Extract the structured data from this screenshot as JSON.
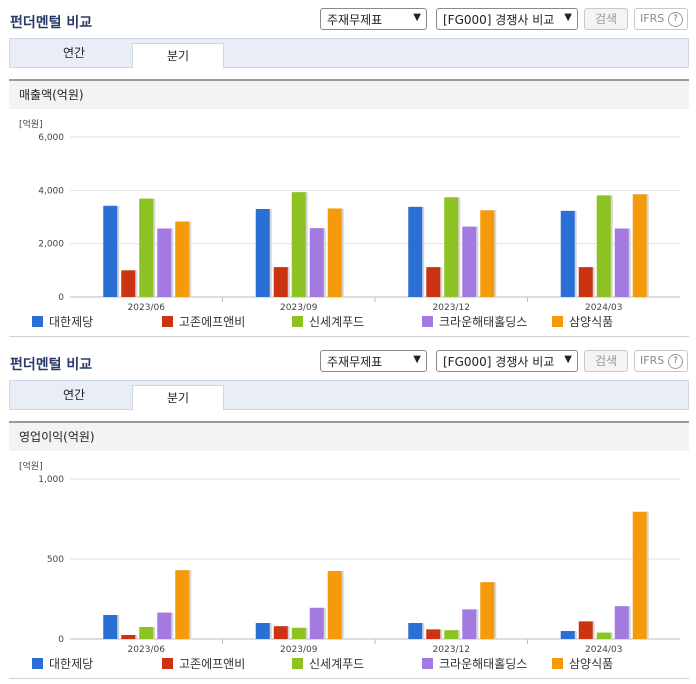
{
  "colors": [
    "#2a6fd6",
    "#cc3312",
    "#8cc221",
    "#a37be0",
    "#f59a0a"
  ],
  "legend": [
    "대한제당",
    "고존에프앤비",
    "신세계푸드",
    "크라운해태홀딩스",
    "삼양식품"
  ],
  "panels": [
    {
      "title": "펀더멘털 비교",
      "select1": "주재무제표",
      "select2": "[FG000] 경쟁사 비교",
      "search_label": "검색",
      "ifrs_label": "IFRS",
      "help_label": "?",
      "tabs": [
        "연간",
        "분기"
      ],
      "active_tab": 1,
      "chart_title": "매출액(억원)",
      "unit_label": "[억원]",
      "chart_data": {
        "type": "bar",
        "title": "매출액(억원)",
        "categories": [
          "2023/06",
          "2023/09",
          "2023/12",
          "2024/03"
        ],
        "yticks": [
          "0",
          "2,000",
          "4,000",
          "6,000"
        ],
        "ylim": [
          0,
          6000
        ],
        "grid": true,
        "legend_position": "bottom",
        "series": [
          {
            "name": "대한제당",
            "values": [
              3420,
              3300,
              3380,
              3230
            ]
          },
          {
            "name": "고존에프앤비",
            "values": [
              1000,
              1120,
              1120,
              1120
            ]
          },
          {
            "name": "신세계푸드",
            "values": [
              3690,
              3930,
              3740,
              3810
            ]
          },
          {
            "name": "크라운해태홀딩스",
            "values": [
              2570,
              2580,
              2640,
              2570
            ]
          },
          {
            "name": "삼양식품",
            "values": [
              2830,
              3320,
              3250,
              3850
            ]
          }
        ]
      }
    },
    {
      "title": "펀더멘털 비교",
      "select1": "주재무제표",
      "select2": "[FG000] 경쟁사 비교",
      "search_label": "검색",
      "ifrs_label": "IFRS",
      "help_label": "?",
      "tabs": [
        "연간",
        "분기"
      ],
      "active_tab": 1,
      "chart_title": "영업이익(억원)",
      "unit_label": "[억원]",
      "chart_data": {
        "type": "bar",
        "title": "영업이익(억원)",
        "categories": [
          "2023/06",
          "2023/09",
          "2023/12",
          "2024/03"
        ],
        "yticks": [
          "0",
          "500",
          "1,000"
        ],
        "ylim": [
          0,
          1000
        ],
        "grid": true,
        "legend_position": "bottom",
        "series": [
          {
            "name": "대한제당",
            "values": [
              150,
              100,
              100,
              50
            ]
          },
          {
            "name": "고존에프앤비",
            "values": [
              25,
              80,
              60,
              110
            ]
          },
          {
            "name": "신세계푸드",
            "values": [
              75,
              70,
              55,
              40
            ]
          },
          {
            "name": "크라운해태홀딩스",
            "values": [
              165,
              195,
              185,
              205
            ]
          },
          {
            "name": "삼양식품",
            "values": [
              430,
              425,
              355,
              795
            ]
          }
        ]
      }
    }
  ]
}
